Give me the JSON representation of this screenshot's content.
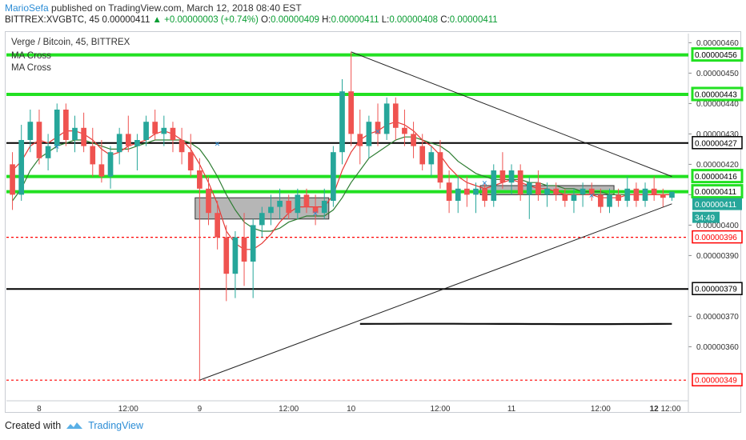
{
  "header": {
    "author": "MarioSefa",
    "published_text": "published on TradingView.com, March 12, 2018 08:40 EST"
  },
  "info_bar": {
    "symbol": "BITTREX:XVGBTC, 45",
    "last": "0.00000411",
    "change": "+0.00000003 (+0.74%)",
    "o_label": "O:",
    "o": "0.00000409",
    "h_label": "H:",
    "h": "0.00000411",
    "l_label": "L:",
    "l": "0.00000408",
    "c_label": "C:",
    "c": "0.00000411"
  },
  "legend": {
    "title": "Verge / Bitcoin, 45, BITTREX",
    "indicator_1": "MA Cross",
    "indicator_2": "MA Cross"
  },
  "footer": {
    "created_with": "Created with",
    "brand": "TradingView"
  },
  "colors": {
    "up": "#26a69a",
    "down": "#ef5350",
    "ma_fast": "#e53935",
    "ma_slow": "#2e7d32",
    "green_level": "#22e022",
    "black_level": "#000000",
    "red_level": "#ff0000",
    "last_price_tag": "#26a69a"
  },
  "chart_data": {
    "type": "candlestick",
    "title": "Verge / Bitcoin, 45, BITTREX",
    "ylim": [
      3.43e-06,
      4.63e-06
    ],
    "y_ticks": [
      "0.00000460",
      "0.00000450",
      "0.00000440",
      "0.00000430",
      "0.00000420",
      "0.00000410",
      "0.00000400",
      "0.00000390",
      "0.00000370",
      "0.00000360"
    ],
    "x_ticks": [
      "8",
      "12:00",
      "9",
      "12:00",
      "10",
      "12:00",
      "11",
      "12:00",
      "12",
      "12:00"
    ],
    "last_price": "0.00000411",
    "countdown": "34:49",
    "levels": [
      {
        "value": 4.56e-06,
        "label": "0.00000456",
        "kind": "green"
      },
      {
        "value": 4.43e-06,
        "label": "0.00000443",
        "kind": "green"
      },
      {
        "value": 4.27e-06,
        "label": "0.00000427",
        "kind": "black"
      },
      {
        "value": 4.16e-06,
        "label": "0.00000416",
        "kind": "green"
      },
      {
        "value": 4.11e-06,
        "label": "0.00000411",
        "kind": "green"
      },
      {
        "value": 3.96e-06,
        "label": "0.00000396",
        "kind": "red"
      },
      {
        "value": 3.79e-06,
        "label": "0.00000379",
        "kind": "black"
      },
      {
        "value": 3.49e-06,
        "label": "0.00000349",
        "kind": "red"
      }
    ],
    "candles": [
      [
        4.2e-06,
        4.24e-06,
        4.05e-06,
        4.1e-06
      ],
      [
        4.1e-06,
        4.33e-06,
        4.08e-06,
        4.28e-06
      ],
      [
        4.28e-06,
        4.38e-06,
        4.24e-06,
        4.34e-06
      ],
      [
        4.34e-06,
        4.38e-06,
        4.2e-06,
        4.22e-06
      ],
      [
        4.22e-06,
        4.3e-06,
        4.18e-06,
        4.26e-06
      ],
      [
        4.26e-06,
        4.4e-06,
        4.24e-06,
        4.38e-06
      ],
      [
        4.38e-06,
        4.4e-06,
        4.26e-06,
        4.28e-06
      ],
      [
        4.28e-06,
        4.36e-06,
        4.24e-06,
        4.32e-06
      ],
      [
        4.32e-06,
        4.37e-06,
        4.24e-06,
        4.26e-06
      ],
      [
        4.26e-06,
        4.32e-06,
        4.16e-06,
        4.2e-06
      ],
      [
        4.2e-06,
        4.28e-06,
        4.14e-06,
        4.16e-06
      ],
      [
        4.16e-06,
        4.26e-06,
        4.12e-06,
        4.24e-06
      ],
      [
        4.24e-06,
        4.32e-06,
        4.2e-06,
        4.3e-06
      ],
      [
        4.3e-06,
        4.36e-06,
        4.24e-06,
        4.26e-06
      ],
      [
        4.26e-06,
        4.3e-06,
        4.18e-06,
        4.28e-06
      ],
      [
        4.28e-06,
        4.36e-06,
        4.26e-06,
        4.34e-06
      ],
      [
        4.34e-06,
        4.38e-06,
        4.28e-06,
        4.3e-06
      ],
      [
        4.3e-06,
        4.36e-06,
        4.26e-06,
        4.32e-06
      ],
      [
        4.32e-06,
        4.34e-06,
        4.24e-06,
        4.28e-06
      ],
      [
        4.28e-06,
        4.32e-06,
        4.2e-06,
        4.24e-06
      ],
      [
        4.24e-06,
        4.3e-06,
        4.16e-06,
        4.18e-06
      ],
      [
        4.18e-06,
        4.22e-06,
        3.49e-06,
        4.12e-06
      ],
      [
        4.12e-06,
        4.16e-06,
        4e-06,
        4.04e-06
      ],
      [
        4.04e-06,
        4.08e-06,
        3.92e-06,
        3.96e-06
      ],
      [
        3.96e-06,
        4e-06,
        3.75e-06,
        3.84e-06
      ],
      [
        3.84e-06,
        3.98e-06,
        3.76e-06,
        3.96e-06
      ],
      [
        3.96e-06,
        4.04e-06,
        3.8e-06,
        3.88e-06
      ],
      [
        3.88e-06,
        4.02e-06,
        3.76e-06,
        4e-06
      ],
      [
        4e-06,
        4.06e-06,
        3.96e-06,
        4.04e-06
      ],
      [
        4.04e-06,
        4.1e-06,
        4e-06,
        4.06e-06
      ],
      [
        4.06e-06,
        4.12e-06,
        4.02e-06,
        4.08e-06
      ],
      [
        4.08e-06,
        4.1e-06,
        4.02e-06,
        4.04e-06
      ],
      [
        4.04e-06,
        4.12e-06,
        4.02e-06,
        4.1e-06
      ],
      [
        4.1e-06,
        4.12e-06,
        4.04e-06,
        4.06e-06
      ],
      [
        4.06e-06,
        4.1e-06,
        4e-06,
        4.04e-06
      ],
      [
        4.04e-06,
        4.12e-06,
        4.02e-06,
        4.08e-06
      ],
      [
        4.08e-06,
        4.26e-06,
        4.06e-06,
        4.24e-06
      ],
      [
        4.24e-06,
        4.48e-06,
        4.2e-06,
        4.44e-06
      ],
      [
        4.44e-06,
        4.57e-06,
        4.26e-06,
        4.3e-06
      ],
      [
        4.3e-06,
        4.38e-06,
        4.2e-06,
        4.26e-06
      ],
      [
        4.26e-06,
        4.36e-06,
        4.22e-06,
        4.34e-06
      ],
      [
        4.34e-06,
        4.4e-06,
        4.26e-06,
        4.3e-06
      ],
      [
        4.3e-06,
        4.42e-06,
        4.28e-06,
        4.4e-06
      ],
      [
        4.4e-06,
        4.42e-06,
        4.28e-06,
        4.32e-06
      ],
      [
        4.32e-06,
        4.38e-06,
        4.26e-06,
        4.3e-06
      ],
      [
        4.3e-06,
        4.34e-06,
        4.22e-06,
        4.26e-06
      ],
      [
        4.26e-06,
        4.3e-06,
        4.18e-06,
        4.2e-06
      ],
      [
        4.2e-06,
        4.26e-06,
        4.16e-06,
        4.24e-06
      ],
      [
        4.24e-06,
        4.28e-06,
        4.12e-06,
        4.14e-06
      ],
      [
        4.14e-06,
        4.18e-06,
        4.04e-06,
        4.08e-06
      ],
      [
        4.08e-06,
        4.16e-06,
        4.04e-06,
        4.12e-06
      ],
      [
        4.12e-06,
        4.16e-06,
        4.06e-06,
        4.1e-06
      ],
      [
        4.1e-06,
        4.14e-06,
        4.04e-06,
        4.12e-06
      ],
      [
        4.12e-06,
        4.14e-06,
        4.06e-06,
        4.08e-06
      ],
      [
        4.08e-06,
        4.2e-06,
        4.06e-06,
        4.18e-06
      ],
      [
        4.18e-06,
        4.24e-06,
        4.12e-06,
        4.14e-06
      ],
      [
        4.14e-06,
        4.2e-06,
        4.1e-06,
        4.18e-06
      ],
      [
        4.18e-06,
        4.2e-06,
        4.08e-06,
        4.1e-06
      ],
      [
        4.1e-06,
        4.16e-06,
        4.02e-06,
        4.14e-06
      ],
      [
        4.14e-06,
        4.18e-06,
        4.08e-06,
        4.1e-06
      ],
      [
        4.1e-06,
        4.14e-06,
        4.06e-06,
        4.12e-06
      ],
      [
        4.12e-06,
        4.14e-06,
        4.08e-06,
        4.1e-06
      ],
      [
        4.1e-06,
        4.12e-06,
        4.06e-06,
        4.08e-06
      ],
      [
        4.08e-06,
        4.12e-06,
        4.04e-06,
        4.1e-06
      ],
      [
        4.1e-06,
        4.14e-06,
        4.06e-06,
        4.12e-06
      ],
      [
        4.12e-06,
        4.14e-06,
        4.08e-06,
        4.1e-06
      ],
      [
        4.1e-06,
        4.12e-06,
        4.04e-06,
        4.06e-06
      ],
      [
        4.06e-06,
        4.12e-06,
        4.04e-06,
        4.1e-06
      ],
      [
        4.1e-06,
        4.12e-06,
        4.06e-06,
        4.08e-06
      ],
      [
        4.08e-06,
        4.16e-06,
        4.06e-06,
        4.12e-06
      ],
      [
        4.12e-06,
        4.14e-06,
        4.06e-06,
        4.08e-06
      ],
      [
        4.08e-06,
        4.14e-06,
        4.06e-06,
        4.12e-06
      ],
      [
        4.12e-06,
        4.16e-06,
        4.08e-06,
        4.1e-06
      ],
      [
        4.1e-06,
        4.12e-06,
        4.06e-06,
        4.09e-06
      ],
      [
        4.09e-06,
        4.11e-06,
        4.08e-06,
        4.11e-06
      ]
    ],
    "ma_fast": [
      4.18e-06,
      4.21e-06,
      4.26e-06,
      4.28e-06,
      4.27e-06,
      4.29e-06,
      4.31e-06,
      4.31e-06,
      4.3e-06,
      4.28e-06,
      4.25e-06,
      4.23e-06,
      4.24e-06,
      4.26e-06,
      4.27e-06,
      4.28e-06,
      4.3e-06,
      4.31e-06,
      4.3e-06,
      4.28e-06,
      4.25e-06,
      4.2e-06,
      4.14e-06,
      4.07e-06,
      3.98e-06,
      3.94e-06,
      3.92e-06,
      3.92e-06,
      3.94e-06,
      3.97e-06,
      4.01e-06,
      4.04e-06,
      4.06e-06,
      4.06e-06,
      4.06e-06,
      4.06e-06,
      4.1e-06,
      4.18e-06,
      4.24e-06,
      4.28e-06,
      4.3e-06,
      4.31e-06,
      4.33e-06,
      4.34e-06,
      4.33e-06,
      4.31e-06,
      4.28e-06,
      4.26e-06,
      4.23e-06,
      4.19e-06,
      4.16e-06,
      4.14e-06,
      4.13e-06,
      4.12e-06,
      4.13e-06,
      4.14e-06,
      4.15e-06,
      4.14e-06,
      4.13e-06,
      4.12e-06,
      4.12e-06,
      4.11e-06,
      4.1e-06,
      4.1e-06,
      4.1e-06,
      4.1e-06,
      4.09e-06,
      4.09e-06,
      4.09e-06,
      4.1e-06,
      4.1e-06,
      4.1e-06,
      4.1e-06,
      4.1e-06,
      4.1e-06
    ],
    "ma_slow": [
      4.08e-06,
      4.12e-06,
      4.18e-06,
      4.22e-06,
      4.24e-06,
      4.26e-06,
      4.27e-06,
      4.28e-06,
      4.28e-06,
      4.27e-06,
      4.26e-06,
      4.25e-06,
      4.25e-06,
      4.25e-06,
      4.26e-06,
      4.27e-06,
      4.28e-06,
      4.28e-06,
      4.28e-06,
      4.28e-06,
      4.27e-06,
      4.25e-06,
      4.21e-06,
      4.16e-06,
      4.1e-06,
      4.05e-06,
      4.01e-06,
      3.99e-06,
      3.98e-06,
      3.98e-06,
      3.99e-06,
      4.01e-06,
      4.02e-06,
      4.03e-06,
      4.03e-06,
      4.03e-06,
      4.05e-06,
      4.09e-06,
      4.14e-06,
      4.18e-06,
      4.22e-06,
      4.24e-06,
      4.26e-06,
      4.28e-06,
      4.29e-06,
      4.29e-06,
      4.28e-06,
      4.27e-06,
      4.26e-06,
      4.24e-06,
      4.21e-06,
      4.19e-06,
      4.17e-06,
      4.16e-06,
      4.15e-06,
      4.15e-06,
      4.15e-06,
      4.15e-06,
      4.14e-06,
      4.14e-06,
      4.13e-06,
      4.13e-06,
      4.12e-06,
      4.12e-06,
      4.11e-06,
      4.11e-06,
      4.11e-06,
      4.1e-06,
      4.1e-06,
      4.1e-06,
      4.1e-06,
      4.1e-06,
      4.1e-06,
      4.1e-06,
      4.1e-06
    ],
    "triangle_upper": [
      [
        4.57e-06,
        4.16e-06
      ]
    ],
    "triangle_lower": [
      [
        3.49e-06,
        4.07e-06
      ]
    ],
    "consolidation_boxes": [
      {
        "from_index": 21,
        "to_index": 35,
        "top": 4.09e-06,
        "bottom": 4.02e-06
      },
      {
        "from_index": 53,
        "to_index": 67,
        "top": 4.13e-06,
        "bottom": 4.1e-06
      }
    ]
  }
}
